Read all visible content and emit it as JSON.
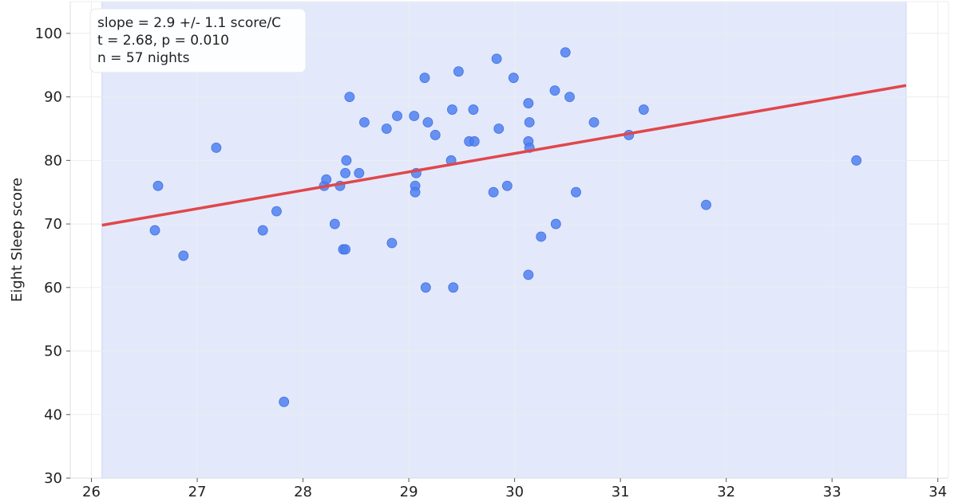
{
  "chart_data": {
    "type": "scatter",
    "title": "",
    "xlabel": "",
    "ylabel": "Eight Sleep score",
    "xlim": [
      25.8,
      34.1
    ],
    "ylim": [
      30,
      105
    ],
    "x_ticks": [
      26,
      27,
      28,
      29,
      30,
      31,
      32,
      33,
      34
    ],
    "y_ticks": [
      30,
      40,
      50,
      60,
      70,
      80,
      90,
      100
    ],
    "grid": true,
    "shaded_x_range": [
      26.1,
      33.7
    ],
    "series": [
      {
        "points": [
          [
            26.6,
            69
          ],
          [
            26.63,
            76
          ],
          [
            26.87,
            65
          ],
          [
            27.18,
            82
          ],
          [
            27.62,
            69
          ],
          [
            27.75,
            72
          ],
          [
            27.82,
            42
          ],
          [
            28.2,
            76
          ],
          [
            28.22,
            77
          ],
          [
            28.3,
            70
          ],
          [
            28.35,
            76
          ],
          [
            28.38,
            66
          ],
          [
            28.4,
            66
          ],
          [
            28.4,
            78
          ],
          [
            28.41,
            80
          ],
          [
            28.44,
            90
          ],
          [
            28.53,
            78
          ],
          [
            28.58,
            86
          ],
          [
            28.79,
            85
          ],
          [
            28.84,
            67
          ],
          [
            28.89,
            87
          ],
          [
            29.05,
            87
          ],
          [
            29.06,
            76
          ],
          [
            29.06,
            75
          ],
          [
            29.07,
            78
          ],
          [
            29.15,
            93
          ],
          [
            29.16,
            60
          ],
          [
            29.18,
            86
          ],
          [
            29.25,
            84
          ],
          [
            29.4,
            80
          ],
          [
            29.41,
            88
          ],
          [
            29.42,
            60
          ],
          [
            29.47,
            94
          ],
          [
            29.57,
            83
          ],
          [
            29.61,
            88
          ],
          [
            29.62,
            83
          ],
          [
            29.8,
            75
          ],
          [
            29.83,
            96
          ],
          [
            29.85,
            85
          ],
          [
            29.93,
            76
          ],
          [
            29.99,
            93
          ],
          [
            30.13,
            89
          ],
          [
            30.13,
            83
          ],
          [
            30.13,
            62
          ],
          [
            30.14,
            82
          ],
          [
            30.14,
            86
          ],
          [
            30.25,
            68
          ],
          [
            30.38,
            91
          ],
          [
            30.39,
            70
          ],
          [
            30.48,
            97
          ],
          [
            30.52,
            90
          ],
          [
            30.58,
            75
          ],
          [
            30.75,
            86
          ],
          [
            31.08,
            84
          ],
          [
            31.22,
            88
          ],
          [
            31.81,
            73
          ],
          [
            33.23,
            80
          ]
        ]
      }
    ],
    "fit_line": {
      "x": [
        26.1,
        33.7
      ],
      "y": [
        69.8,
        91.8
      ]
    },
    "colors": {
      "points": "#4a7ef0",
      "fit_line": "#e0474c",
      "shade": "#e3e9fb",
      "grid": "#ebedf0"
    },
    "stats_box": {
      "line1": "slope = 2.9 +/- 1.1 score/C",
      "line2": "t = 2.68, p = 0.010",
      "line3": "n = 57 nights",
      "position": "top-left"
    }
  }
}
